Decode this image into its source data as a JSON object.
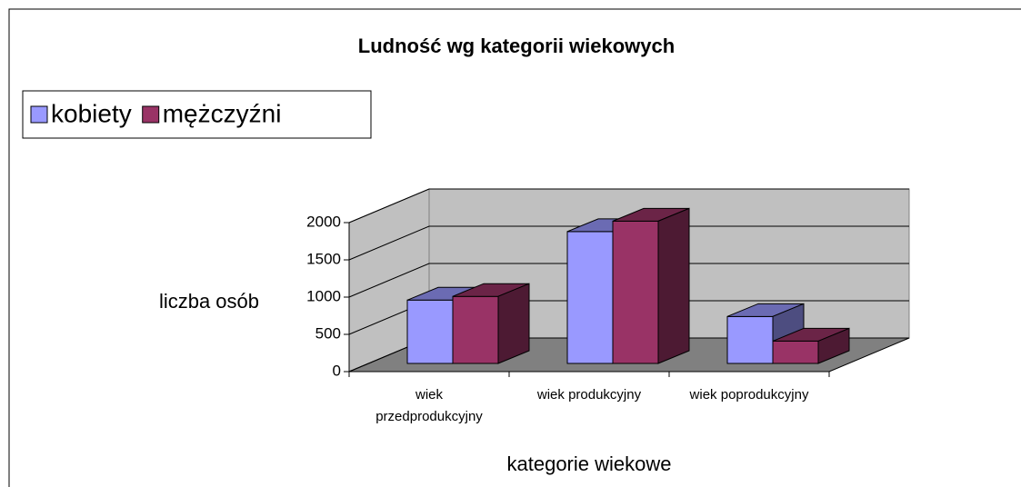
{
  "chart_data": {
    "type": "bar3d",
    "title": "Ludność wg kategorii wiekowych",
    "categories": [
      "wiek przedprodukcyjny",
      "wiek produkcyjny",
      "wiek poprodukcyjny"
    ],
    "series": [
      {
        "name": "kobiety",
        "color": "#9999ff",
        "values": [
          850,
          1770,
          630
        ]
      },
      {
        "name": "mężczyźni",
        "color": "#993366",
        "values": [
          900,
          1910,
          300
        ]
      }
    ],
    "ylabel": "liczba osób",
    "xlabel": "kategorie wiekowe",
    "ylim": [
      0,
      2000
    ],
    "yticks": [
      0,
      500,
      1000,
      1500,
      2000
    ],
    "grid": true,
    "legend": "top-left"
  }
}
